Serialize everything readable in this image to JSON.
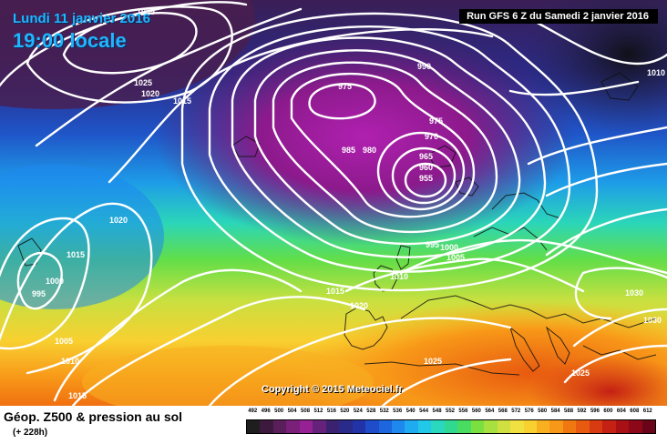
{
  "header": {
    "date": "Lundi 11 janvier 2016",
    "time": "19:00 locale",
    "run": "Run GFS 6 Z du Samedi 2 janvier 2016"
  },
  "copyright": "Copyright © 2015 Meteociel.fr",
  "footer": {
    "title": "Géop. Z500 & pression au sol",
    "subtitle": "(+ 228h)"
  },
  "scale": {
    "labels": [
      "492",
      "496",
      "500",
      "504",
      "508",
      "512",
      "516",
      "520",
      "524",
      "528",
      "532",
      "536",
      "540",
      "544",
      "548",
      "552",
      "556",
      "560",
      "564",
      "568",
      "572",
      "576",
      "580",
      "584",
      "588",
      "592",
      "596",
      "600",
      "604",
      "608",
      "612"
    ],
    "colors": [
      "#1e1e1e",
      "#3d1a3d",
      "#5a1e5a",
      "#7a1f7a",
      "#952195",
      "#66227a",
      "#3a2270",
      "#2a2a8a",
      "#2233a8",
      "#1f4cc8",
      "#1e66dd",
      "#1e88ee",
      "#20aaf0",
      "#22c8e8",
      "#2ad8c0",
      "#30d890",
      "#48dc60",
      "#7ae040",
      "#a8e040",
      "#d0e040",
      "#f0e040",
      "#f8d030",
      "#f8b020",
      "#f89818",
      "#f07810",
      "#e85a10",
      "#d83a12",
      "#c42014",
      "#a81016",
      "#8c0818",
      "#6a0418"
    ]
  },
  "isobars": [
    {
      "text": "1035"
    },
    {
      "text": "1025"
    },
    {
      "text": "1020"
    },
    {
      "text": "1015"
    },
    {
      "text": "990"
    },
    {
      "text": "975"
    },
    {
      "text": "975"
    },
    {
      "text": "970"
    },
    {
      "text": "985"
    },
    {
      "text": "980"
    },
    {
      "text": "965"
    },
    {
      "text": "960"
    },
    {
      "text": "955"
    },
    {
      "text": "1010"
    },
    {
      "text": "1020"
    },
    {
      "text": "1015"
    },
    {
      "text": "1000"
    },
    {
      "text": "995"
    },
    {
      "text": "995"
    },
    {
      "text": "1000"
    },
    {
      "text": "1005"
    },
    {
      "text": "1010"
    },
    {
      "text": "1015"
    },
    {
      "text": "1020"
    },
    {
      "text": "1005"
    },
    {
      "text": "1010"
    },
    {
      "text": "1015"
    },
    {
      "text": "1025"
    },
    {
      "text": "1030"
    },
    {
      "text": "1030"
    },
    {
      "text": "1025"
    }
  ]
}
